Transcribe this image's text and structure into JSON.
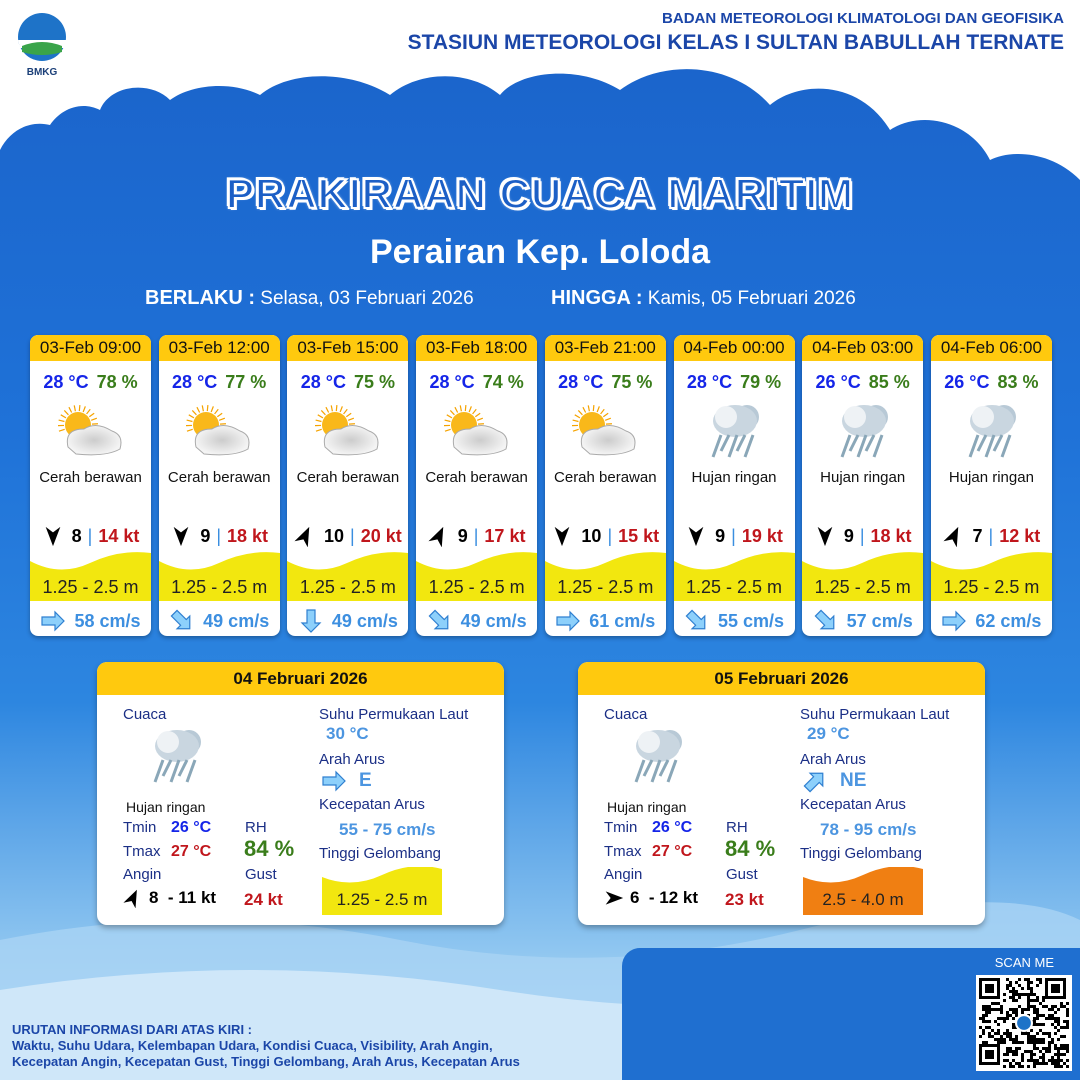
{
  "header": {
    "logo_text": "BMKG",
    "agency": "BADAN METEOROLOGI KLIMATOLOGI DAN GEOFISIKA",
    "station": "STASIUN METEOROLOGI KELAS I SULTAN BABULLAH TERNATE"
  },
  "title": "PRAKIRAAN CUACA MARITIM",
  "subtitle": "Perairan Kep. Loloda",
  "validity": {
    "from_label": "BERLAKU :",
    "from": "Selasa, 03 Februari 2026",
    "to_label": "HINGGA :",
    "to": "Kamis, 05 Februari 2026"
  },
  "cards": [
    {
      "time": "03-Feb 09:00",
      "temp": "28 °C",
      "rh": "78 %",
      "icon": "partly-cloudy",
      "cond": "Cerah berawan",
      "wind_dir": "S",
      "wind": "8",
      "gust": "14 kt",
      "wave": "1.25 - 2.5 m",
      "wave_color": "#f2e70f",
      "cur_dir": "E",
      "cur": "58 cm/s"
    },
    {
      "time": "03-Feb 12:00",
      "temp": "28 °C",
      "rh": "77 %",
      "icon": "partly-cloudy",
      "cond": "Cerah berawan",
      "wind_dir": "S",
      "wind": "9",
      "gust": "18 kt",
      "wave": "1.25 - 2.5 m",
      "wave_color": "#f2e70f",
      "cur_dir": "SE",
      "cur": "49 cm/s"
    },
    {
      "time": "03-Feb 15:00",
      "temp": "28 °C",
      "rh": "75 %",
      "icon": "partly-cloudy",
      "cond": "Cerah berawan",
      "wind_dir": "NNE",
      "wind": "10",
      "gust": "20 kt",
      "wave": "1.25 - 2.5 m",
      "wave_color": "#f2e70f",
      "cur_dir": "S",
      "cur": "49 cm/s"
    },
    {
      "time": "03-Feb 18:00",
      "temp": "28 °C",
      "rh": "74 %",
      "icon": "partly-cloudy",
      "cond": "Cerah berawan",
      "wind_dir": "NNE",
      "wind": "9",
      "gust": "17 kt",
      "wave": "1.25 - 2.5 m",
      "wave_color": "#f2e70f",
      "cur_dir": "SE",
      "cur": "49 cm/s"
    },
    {
      "time": "03-Feb 21:00",
      "temp": "28 °C",
      "rh": "75 %",
      "icon": "partly-cloudy",
      "cond": "Cerah berawan",
      "wind_dir": "S",
      "wind": "10",
      "gust": "15 kt",
      "wave": "1.25 - 2.5 m",
      "wave_color": "#f2e70f",
      "cur_dir": "E",
      "cur": "61 cm/s"
    },
    {
      "time": "04-Feb 00:00",
      "temp": "28 °C",
      "rh": "79 %",
      "icon": "light-rain",
      "cond": "Hujan ringan",
      "wind_dir": "S",
      "wind": "9",
      "gust": "19 kt",
      "wave": "1.25 - 2.5 m",
      "wave_color": "#f2e70f",
      "cur_dir": "SE",
      "cur": "55 cm/s"
    },
    {
      "time": "04-Feb 03:00",
      "temp": "26 °C",
      "rh": "85 %",
      "icon": "light-rain",
      "cond": "Hujan ringan",
      "wind_dir": "S",
      "wind": "9",
      "gust": "18 kt",
      "wave": "1.25 - 2.5 m",
      "wave_color": "#f2e70f",
      "cur_dir": "SE",
      "cur": "57 cm/s"
    },
    {
      "time": "04-Feb 06:00",
      "temp": "26 °C",
      "rh": "83 %",
      "icon": "light-rain",
      "cond": "Hujan ringan",
      "wind_dir": "NNE",
      "wind": "7",
      "gust": "12 kt",
      "wave": "1.25 - 2.5 m",
      "wave_color": "#f2e70f",
      "cur_dir": "E",
      "cur": "62 cm/s"
    }
  ],
  "labels": {
    "cuaca": "Cuaca",
    "tmin": "Tmin",
    "tmax": "Tmax",
    "angin": "Angin",
    "rh": "RH",
    "gust": "Gust",
    "sst": "Suhu Permukaan Laut",
    "arah_arus": "Arah Arus",
    "kec_arus": "Kecepatan Arus",
    "tinggi": "Tinggi Gelombang"
  },
  "daily": [
    {
      "date": "04 Februari 2026",
      "cond": "Hujan ringan",
      "tmin": "26 °C",
      "tmax": "27 °C",
      "rh": "84 %",
      "wind": "8  - 11 kt",
      "wind_dir": "NNE",
      "gust": "24 kt",
      "sst": "30 °C",
      "cur_dir": "E",
      "cur_dir_label": "E",
      "cur_speed": "55 - 75 cm/s",
      "wave": "1.25 - 2.5 m",
      "wave_color": "#f2e70f"
    },
    {
      "date": "05 Februari 2026",
      "cond": "Hujan ringan",
      "tmin": "26 °C",
      "tmax": "27 °C",
      "rh": "84 %",
      "wind": "6  - 12 kt",
      "wind_dir": "E",
      "gust": "23 kt",
      "sst": "29 °C",
      "cur_dir": "NE",
      "cur_dir_label": "NE",
      "cur_speed": "78 - 95 cm/s",
      "wave": "2.5 - 4.0 m",
      "wave_color": "#f07f12"
    }
  ],
  "scan": "SCAN ME",
  "footer": {
    "line1": "URUTAN INFORMASI DARI ATAS KIRI :",
    "line2": "Waktu, Suhu Udara, Kelembapan Udara, Kondisi Cuaca, Visibility, Arah Angin,",
    "line3": "Kecepatan Angin, Kecepatan Gust, Tinggi Gelombang, Arah Arus, Kecepatan Arus"
  }
}
